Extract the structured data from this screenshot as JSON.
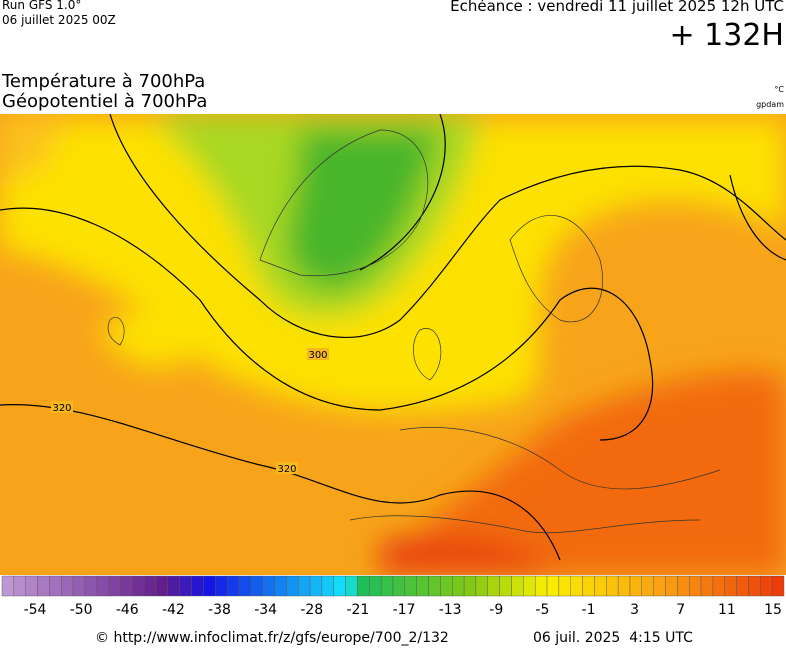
{
  "header": {
    "run": "Run GFS 1.0°",
    "run_date": "06 juillet 2025 00Z",
    "valid": "Echéance : vendredi 11 juillet 2025 12h UTC",
    "lead": "+ 132H"
  },
  "titles": {
    "line1": "Température à 700hPa",
    "line2": "Géopotentiel à 700hPa",
    "unit_temp": "°C",
    "unit_geo": "gpdam"
  },
  "contour_labels": [
    "300",
    "320",
    "320"
  ],
  "legend": {
    "ticks": [
      -54,
      -50,
      -46,
      -42,
      -38,
      -34,
      -28,
      -21,
      -17,
      -13,
      -9,
      -5,
      -1,
      3,
      7,
      11,
      15
    ]
  },
  "footer": {
    "source": "© http://www.infoclimat.fr/z/gfs/europe/700_2/132",
    "generated": "06 juil. 2025  4:15 UTC"
  }
}
